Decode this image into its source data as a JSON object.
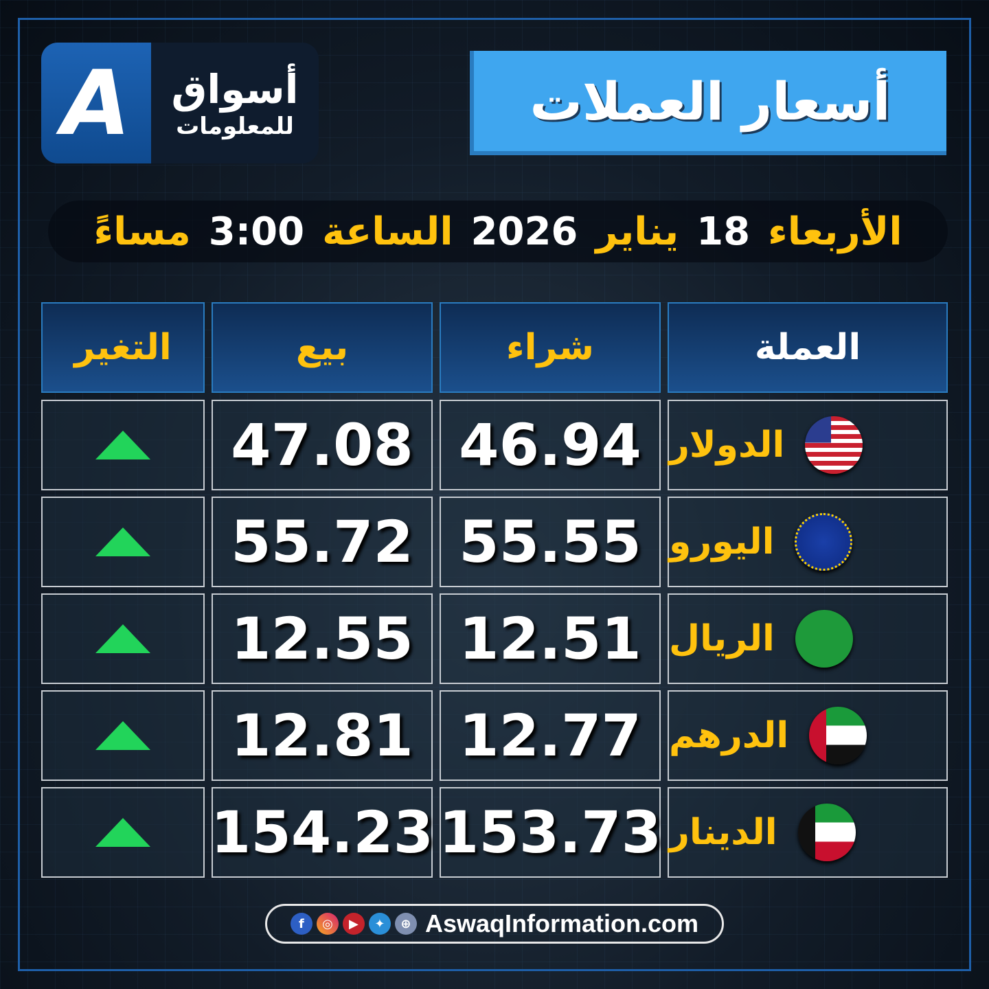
{
  "brand": {
    "name": "أسواق",
    "subtitle": "للمعلومات",
    "mark": "A"
  },
  "title": "أسعار العملات",
  "date": {
    "day": "الأربعاء",
    "date_num": "18",
    "month": "يناير",
    "year": "2026",
    "time_label": "الساعة",
    "time": "3:00",
    "period": "مساءً"
  },
  "table": {
    "headers": [
      "العملة",
      "شراء",
      "بيع",
      "التغير"
    ],
    "rows": [
      {
        "currency": "الدولار",
        "flag": "us-flag",
        "buy": "46.94",
        "sell": "47.08",
        "change": "up"
      },
      {
        "currency": "اليورو",
        "flag": "eu-flag",
        "buy": "55.55",
        "sell": "55.72",
        "change": "up"
      },
      {
        "currency": "الريال",
        "flag": "saudi-flag",
        "buy": "12.51",
        "sell": "12.55",
        "change": "up"
      },
      {
        "currency": "الدرهم",
        "flag": "uae-flag",
        "buy": "12.77",
        "sell": "12.81",
        "change": "up"
      },
      {
        "currency": "الدينار",
        "flag": "kuwait-flag",
        "buy": "153.73",
        "sell": "154.23",
        "change": "up"
      }
    ]
  },
  "colors": {
    "accent": "#3fa6ef",
    "highlight": "#ffc20e",
    "up": "#22d45a"
  },
  "footer": {
    "website": "AswaqInformation.com",
    "icons": [
      "facebook-icon",
      "instagram-icon",
      "youtube-icon",
      "twitter-icon",
      "globe-icon"
    ]
  }
}
